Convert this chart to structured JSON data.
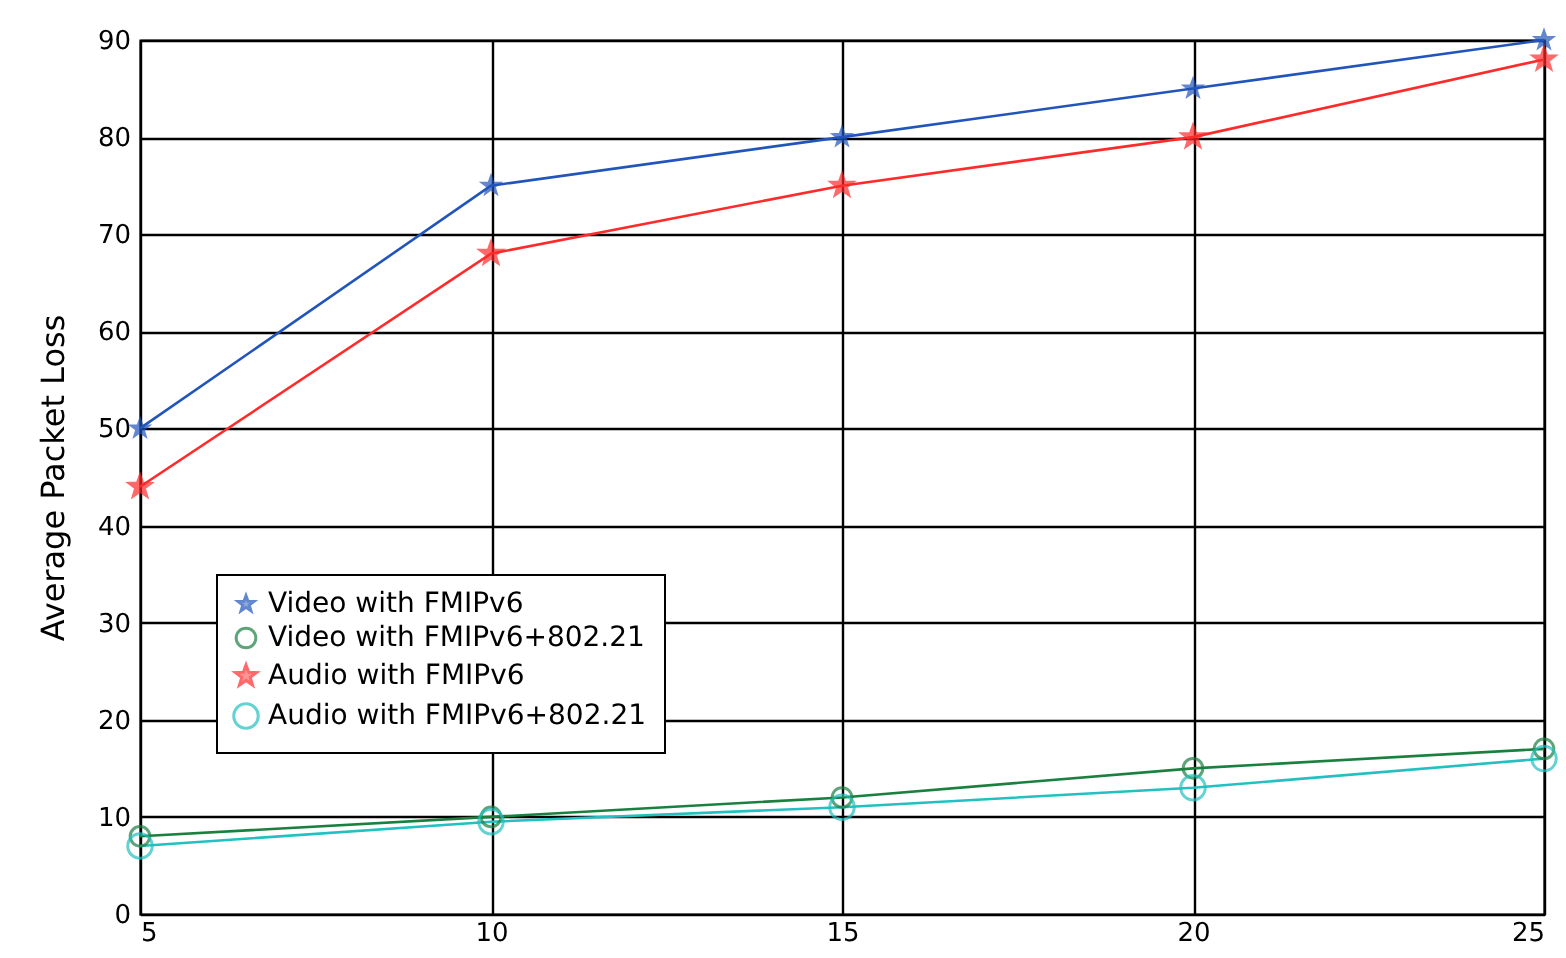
{
  "chart_data": {
    "type": "line",
    "ylabel": "Average Packet Loss",
    "x": [
      5,
      10,
      15,
      20,
      25
    ],
    "series": [
      {
        "name": "Video with FMIPv6",
        "color": "#2255bb",
        "marker": "star",
        "values": [
          50,
          75,
          80,
          85,
          90
        ]
      },
      {
        "name": "Video with FMIPv6+802.21",
        "color": "#1a8040",
        "marker": "circle",
        "values": [
          8,
          10,
          12,
          15,
          17
        ]
      },
      {
        "name": "Audio with FMIPv6",
        "color": "#ff2a2a",
        "marker": "star",
        "values": [
          44,
          68,
          75,
          80,
          88
        ]
      },
      {
        "name": "Audio with FMIPv6+802.21",
        "color": "#22c0c0",
        "marker": "circle",
        "values": [
          7,
          9.5,
          11,
          13,
          16
        ]
      }
    ],
    "xlim": [
      5,
      25
    ],
    "xticks": [
      5,
      10,
      15,
      20,
      25
    ],
    "ylim": [
      0,
      90
    ],
    "yticks": [
      0,
      10,
      20,
      30,
      40,
      50,
      60,
      70,
      80,
      90
    ],
    "grid": true,
    "legend": "bottom left",
    "line_style": "solid"
  }
}
